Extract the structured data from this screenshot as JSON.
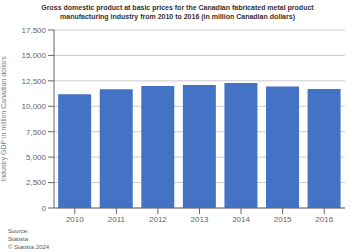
{
  "chart_data": {
    "type": "bar",
    "title": "Gross domestic product at basic prices for the Canadian fabricated metal product\nmanufacturing industry from 2010 to 2016 (in million Canadian dollars)",
    "y_label": "Industry GDP in million Canadian dollars",
    "categories": [
      "2010",
      "2011",
      "2012",
      "2013",
      "2014",
      "2015",
      "2016"
    ],
    "values": [
      11180,
      11680,
      12000,
      12100,
      12280,
      11950,
      11700
    ],
    "color": "#4472c4",
    "ylim": [
      0,
      17500
    ],
    "yticks": [
      0,
      {
        "value": 2500,
        "label": "2,500"
      },
      {
        "value": 5000,
        "label": "5,000"
      },
      {
        "value": 7500,
        "label": "7,500"
      },
      {
        "value": 10000,
        "label": "10,000"
      },
      {
        "value": 12500,
        "label": "12,500"
      },
      {
        "value": 15000,
        "label": "15,000"
      },
      {
        "value": 17500,
        "label": "17,500"
      }
    ],
    "grid": true,
    "annotations": [
      "Source:\nStatista\n© Statista 2024"
    ]
  }
}
